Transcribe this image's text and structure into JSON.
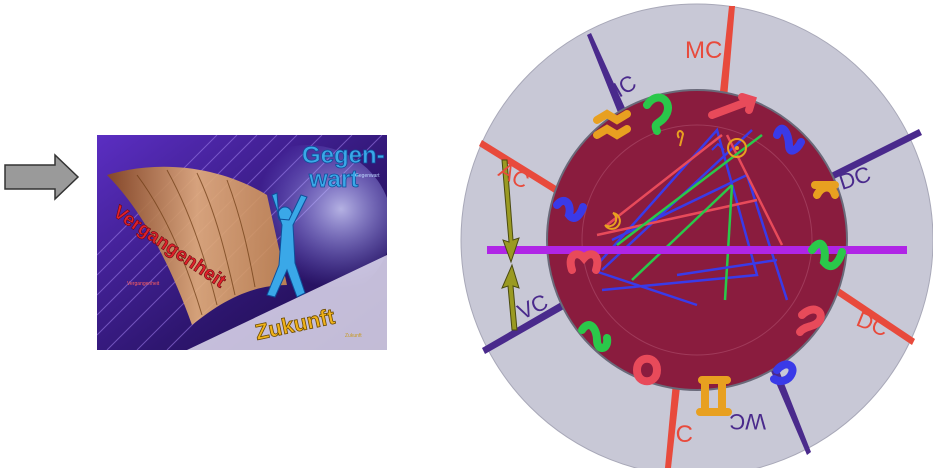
{
  "panel": {
    "word_present_1": "Gegen-",
    "word_present_2": "wart",
    "word_past": "Vergangenheit",
    "word_future": "Zukunft",
    "small_label_1": "Gegenwart",
    "small_label_2": "Vergangenheit",
    "small_label_3": "Zukunft",
    "colors": {
      "background": "#3b1f8c",
      "present": "#3aa8e8",
      "past": "#e0202a",
      "future": "#f0b21a"
    }
  },
  "wheel": {
    "angle_labels": {
      "mc": "MC",
      "ic_top": "IC",
      "ic_bottom": "IC",
      "ac": "AC",
      "vc": "VC",
      "dc_right": "DC",
      "dc_lower": "DC",
      "wc": "WC"
    },
    "colors": {
      "outer_ring": "#c8c8d6",
      "inner_disc": "#8a1c3e",
      "axis_bar": "#b025e6",
      "red_axis": "#e84a3c",
      "purple_axis": "#4a2a8c"
    },
    "icons": [
      "aries-icon",
      "taurus-icon",
      "gemini-icon",
      "cancer-icon",
      "leo-icon",
      "virgo-icon",
      "libra-icon",
      "scorpio-icon",
      "sagittarius-icon",
      "capricorn-icon",
      "aquarius-icon",
      "pisces-icon"
    ]
  }
}
